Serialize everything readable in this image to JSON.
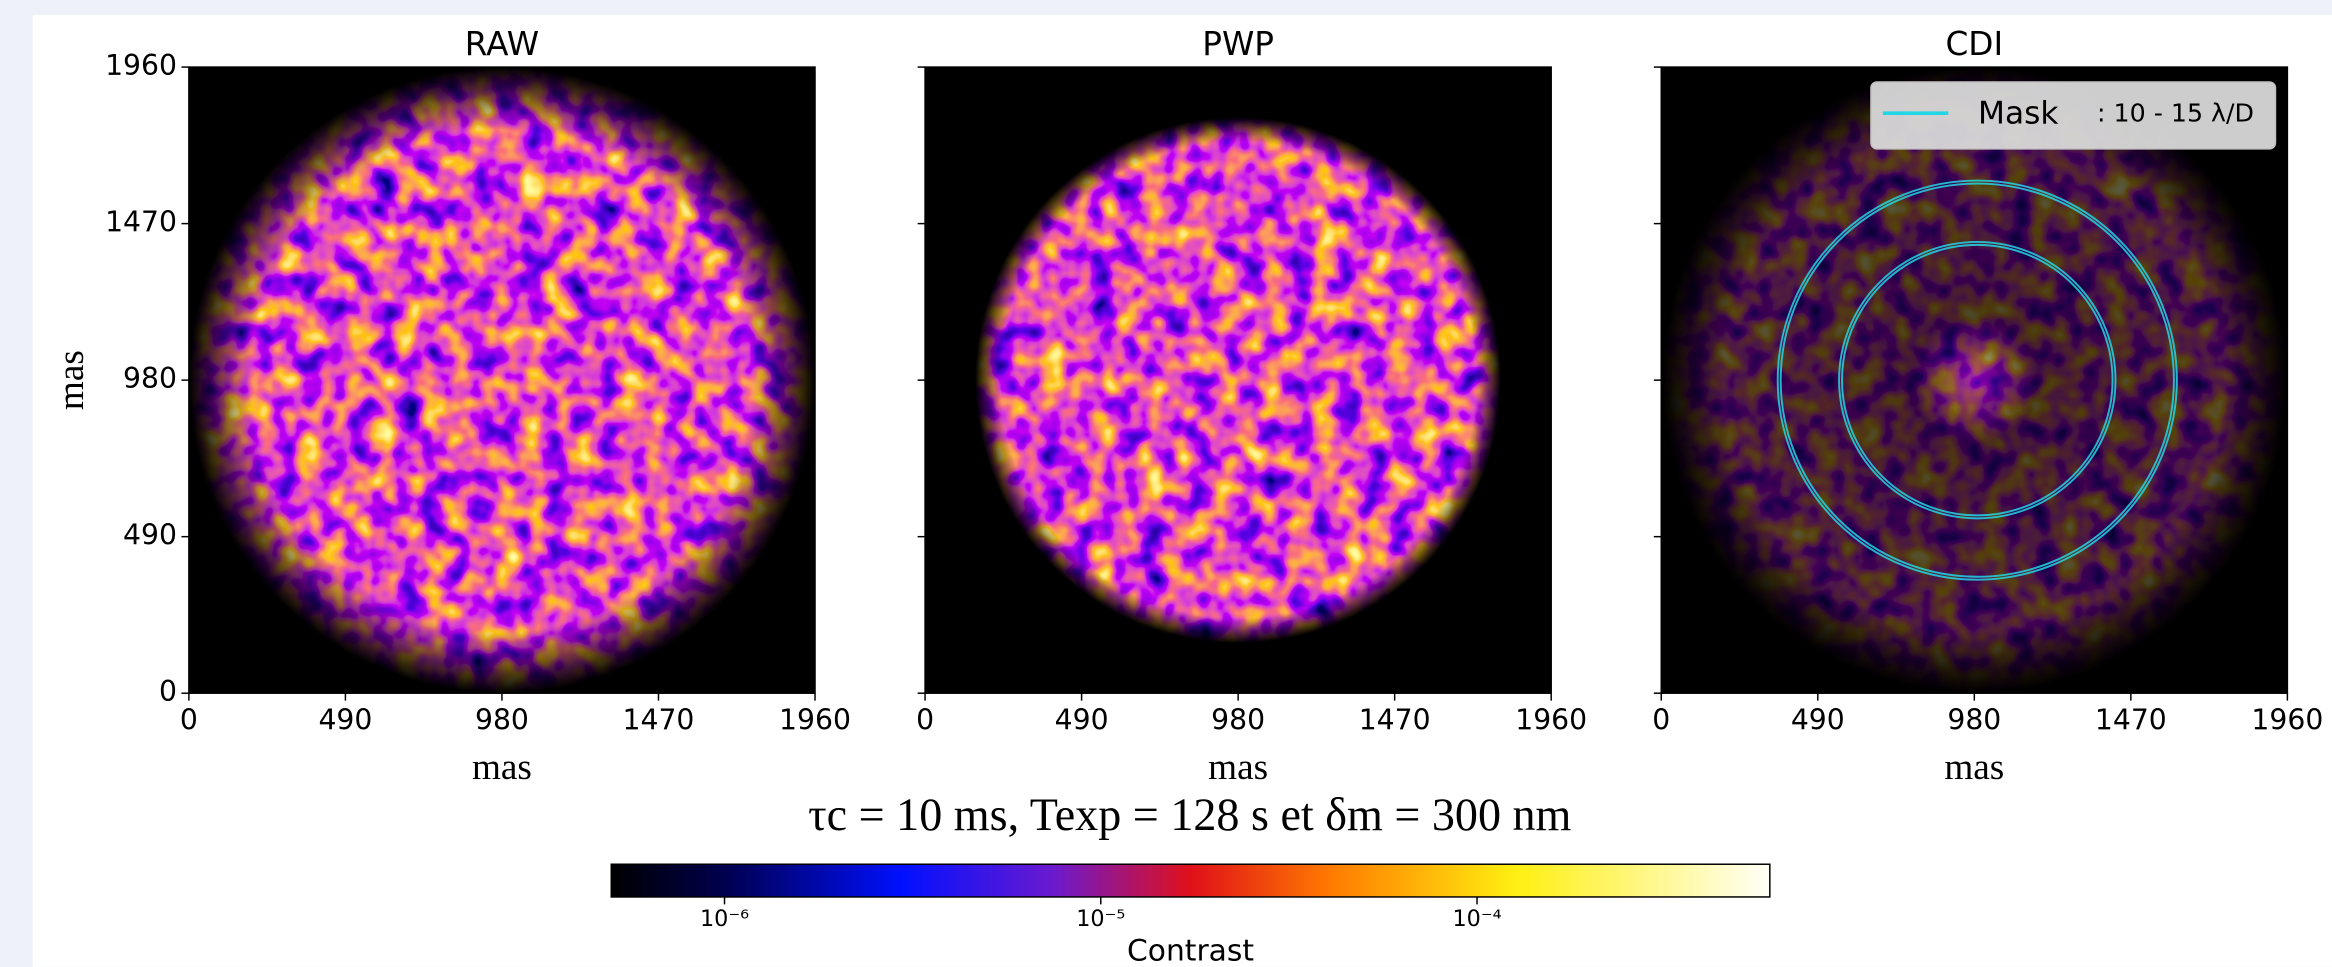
{
  "chart_data": [
    {
      "type": "image",
      "title": "RAW",
      "xlabel": "mas",
      "ylabel": "mas",
      "xlim": [
        0,
        1960
      ],
      "ylim": [
        0,
        1960
      ],
      "xticks": [
        0,
        490,
        980,
        1470,
        1960
      ],
      "yticks": [
        0,
        490,
        980,
        1470,
        1960
      ],
      "ytick_labels": true
    },
    {
      "type": "image",
      "title": "PWP",
      "xlabel": "mas",
      "xlim": [
        0,
        1960
      ],
      "ylim": [
        0,
        1960
      ],
      "xticks": [
        0,
        490,
        980,
        1470,
        1960
      ],
      "yticks": [
        0,
        490,
        980,
        1470,
        1960
      ],
      "ytick_labels": false
    },
    {
      "type": "image",
      "title": "CDI",
      "xlabel": "mas",
      "xlim": [
        0,
        1960
      ],
      "ylim": [
        0,
        1960
      ],
      "xticks": [
        0,
        490,
        980,
        1470,
        1960
      ],
      "yticks": [
        0,
        490,
        980,
        1470,
        1960
      ],
      "ytick_labels": false,
      "legend": {
        "name": "Mask",
        "label": ": 10 - 15 λ/D",
        "color": "#22d6e6",
        "position": "upper right"
      }
    }
  ],
  "suptitle": "τc = 10 ms, Texp = 128 s et δm = 300 nm",
  "colorbar": {
    "label": "Contrast",
    "scale": "log",
    "clim": [
      5e-07,
      0.0006
    ],
    "ticks": [
      {
        "value": 1e-06,
        "label": "10⁻⁶"
      },
      {
        "value": 1e-05,
        "label": "10⁻⁵"
      },
      {
        "value": 0.0001,
        "label": "10⁻⁴"
      }
    ]
  }
}
